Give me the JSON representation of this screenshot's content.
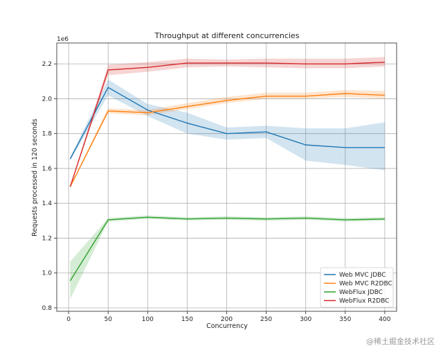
{
  "chart_data": {
    "type": "line",
    "title": "Throughput at different concurrencies",
    "xlabel": "Concurrency",
    "ylabel": "Requests processed in 120 seconds",
    "y_multiplier": "1e6",
    "xlim": [
      -15,
      415
    ],
    "ylim": [
      0.78,
      2.32
    ],
    "xticks": [
      0,
      50,
      100,
      150,
      200,
      250,
      300,
      350,
      400
    ],
    "yticks": [
      0.8,
      1.0,
      1.2,
      1.4,
      1.6,
      1.8,
      2.0,
      2.2
    ],
    "grid": true,
    "legend_position": "lower-right",
    "x": [
      2,
      50,
      100,
      150,
      200,
      250,
      300,
      350,
      400
    ],
    "series": [
      {
        "name": "Web MVC JDBC",
        "color": "#1f77b4",
        "values": [
          1.655,
          2.065,
          1.935,
          1.86,
          1.8,
          1.81,
          1.735,
          1.72,
          1.72
        ],
        "lower": [
          1.645,
          2.02,
          1.9,
          1.8,
          1.765,
          1.775,
          1.645,
          1.62,
          1.59
        ],
        "upper": [
          1.665,
          2.11,
          1.97,
          1.92,
          1.835,
          1.845,
          1.83,
          1.83,
          1.865
        ]
      },
      {
        "name": "Web MVC R2DBC",
        "color": "#ff7f0e",
        "values": [
          1.495,
          1.93,
          1.92,
          1.955,
          1.99,
          2.015,
          2.015,
          2.03,
          2.02
        ],
        "lower": [
          1.49,
          1.915,
          1.905,
          1.94,
          1.975,
          2.0,
          2.0,
          2.01,
          2.0
        ],
        "upper": [
          1.5,
          1.945,
          1.935,
          1.975,
          2.01,
          2.035,
          2.035,
          2.05,
          2.045
        ]
      },
      {
        "name": "WebFlux JDBC",
        "color": "#2ca02c",
        "values": [
          0.955,
          1.305,
          1.32,
          1.31,
          1.315,
          1.31,
          1.315,
          1.305,
          1.31
        ],
        "lower": [
          0.85,
          1.295,
          1.31,
          1.302,
          1.305,
          1.3,
          1.305,
          1.295,
          1.3
        ],
        "upper": [
          1.065,
          1.315,
          1.33,
          1.32,
          1.325,
          1.32,
          1.325,
          1.315,
          1.32
        ]
      },
      {
        "name": "WebFlux R2DBC",
        "color": "#d62728",
        "values": [
          1.495,
          2.165,
          2.18,
          2.205,
          2.205,
          2.205,
          2.2,
          2.2,
          2.21
        ],
        "lower": [
          1.49,
          2.135,
          2.155,
          2.18,
          2.185,
          2.18,
          2.175,
          2.175,
          2.185
        ],
        "upper": [
          1.5,
          2.195,
          2.21,
          2.23,
          2.225,
          2.23,
          2.23,
          2.23,
          2.24
        ]
      }
    ]
  },
  "watermark": "@稀土掘金技术社区"
}
